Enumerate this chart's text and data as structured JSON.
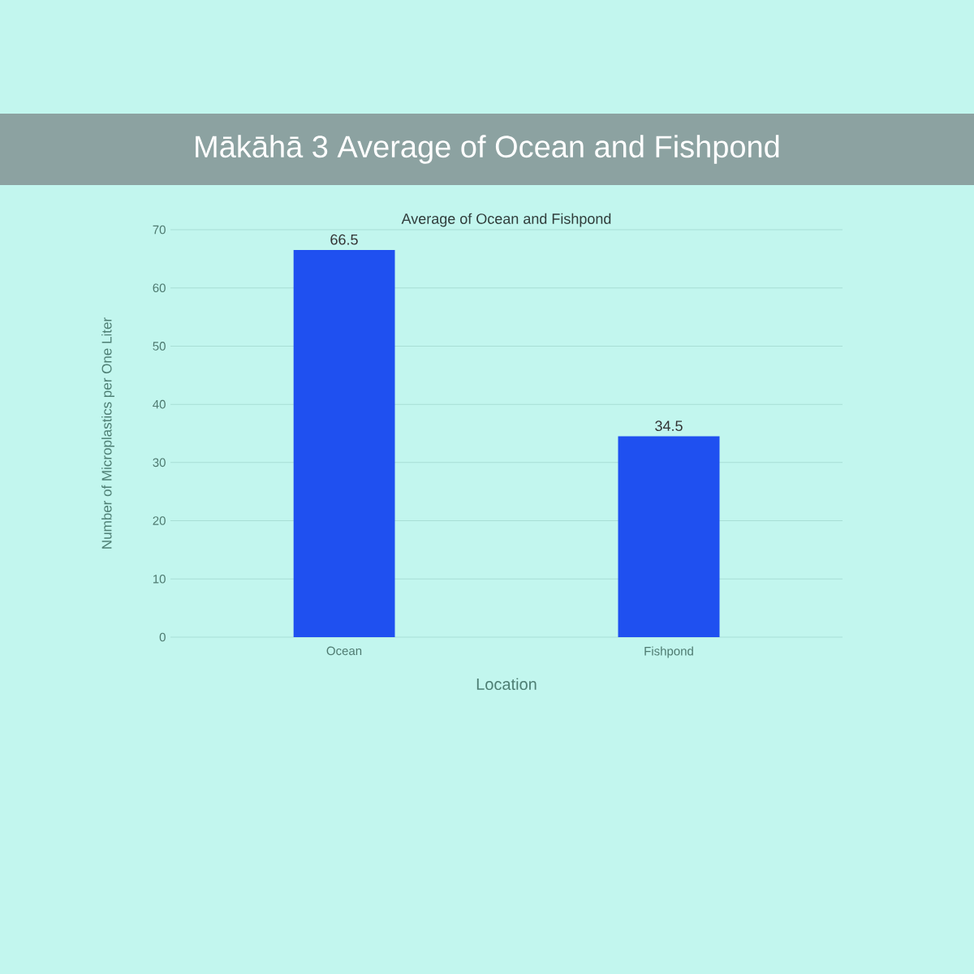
{
  "chart_data": {
    "type": "bar",
    "title": "Mākāhā 3 Average of Ocean and Fishpond",
    "subtitle": "Average of Ocean and Fishpond",
    "xlabel": "Location",
    "ylabel": "Number of Microplastics per One Liter",
    "categories": [
      "Ocean",
      "Fishpond"
    ],
    "values": [
      66.5,
      34.5
    ],
    "color": "#1f50f0",
    "ylim": [
      0,
      70
    ],
    "yticks": [
      0,
      10,
      20,
      30,
      40,
      50,
      60,
      70
    ],
    "grid": "y",
    "data_labels": true
  }
}
